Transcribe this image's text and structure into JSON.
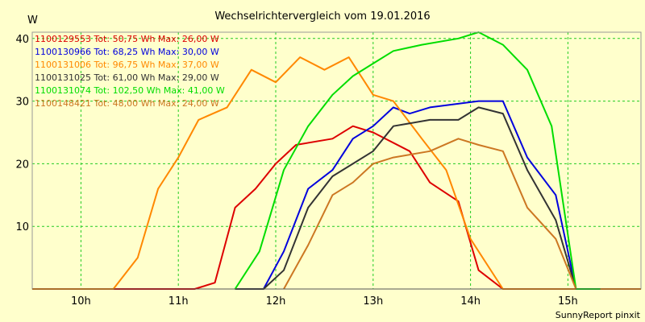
{
  "chart_data": {
    "type": "line",
    "title": "Wechselrichtervergleich vom 19.01.2016",
    "ylabel": "W",
    "xlabel": "",
    "footer": "SunnyReport pinxit",
    "ylim": [
      0,
      41
    ],
    "xlim": [
      9.5,
      15.75
    ],
    "grid": true,
    "legend_position": "top-left",
    "yticks": [
      10,
      20,
      30,
      40
    ],
    "xticks": [
      {
        "value": 10,
        "label": "10h"
      },
      {
        "value": 11,
        "label": "11h"
      },
      {
        "value": 12,
        "label": "12h"
      },
      {
        "value": 13,
        "label": "13h"
      },
      {
        "value": 14,
        "label": "14h"
      },
      {
        "value": 15,
        "label": "15h"
      }
    ],
    "series": [
      {
        "name": "1100129553 Tot: 50,75 Wh Max: 26,00 W",
        "color": "#dd0000",
        "x": [
          9.5,
          10.333,
          11.167,
          11.375,
          11.583,
          11.792,
          12.0,
          12.208,
          12.583,
          12.792,
          13.0,
          13.375,
          13.583,
          13.875,
          14.083,
          14.333,
          15.75
        ],
        "y": [
          0,
          0,
          0,
          1,
          13,
          16,
          20,
          23,
          24,
          26,
          25,
          22,
          17,
          14,
          3,
          0,
          0
        ]
      },
      {
        "name": "1100130966 Tot: 68,25 Wh Max: 30,00 W",
        "color": "#0000dd",
        "x": [
          11.583,
          11.875,
          12.083,
          12.333,
          12.583,
          12.792,
          13.0,
          13.208,
          13.375,
          13.583,
          14.083,
          14.333,
          14.583,
          14.875,
          15.083
        ],
        "y": [
          0,
          0,
          6,
          16,
          19,
          24,
          26,
          29,
          28,
          29,
          30,
          30,
          21,
          15,
          0
        ]
      },
      {
        "name": "1100131006 Tot: 96,75 Wh Max: 37,00 W",
        "color": "#ff8800",
        "x": [
          9.5,
          10.333,
          10.583,
          10.792,
          11.0,
          11.208,
          11.5,
          11.75,
          12.0,
          12.25,
          12.5,
          12.75,
          13.0,
          13.208,
          13.5,
          13.75,
          14.0,
          14.333,
          15.75
        ],
        "y": [
          0,
          0,
          5,
          16,
          21,
          27,
          29,
          35,
          33,
          37,
          35,
          37,
          31,
          30,
          24,
          19,
          8,
          0,
          0
        ]
      },
      {
        "name": "1100131025 Tot: 61,00 Wh Max: 29,00 W",
        "color": "#333333",
        "x": [
          11.583,
          11.875,
          12.083,
          12.333,
          12.583,
          12.792,
          13.0,
          13.208,
          13.583,
          13.875,
          14.083,
          14.333,
          14.583,
          14.875,
          15.083
        ],
        "y": [
          0,
          0,
          3,
          13,
          18,
          20,
          22,
          26,
          27,
          27,
          29,
          28,
          19,
          11,
          0
        ]
      },
      {
        "name": "1100131074 Tot: 102,50 Wh Max: 41,00 W",
        "color": "#00dd00",
        "x": [
          11.583,
          11.833,
          12.083,
          12.333,
          12.583,
          12.792,
          13.0,
          13.208,
          13.5,
          13.875,
          14.083,
          14.333,
          14.583,
          14.833,
          15.083,
          15.333
        ],
        "y": [
          0,
          6,
          19,
          26,
          31,
          34,
          36,
          38,
          39,
          40,
          41,
          39,
          35,
          26,
          0,
          0
        ]
      },
      {
        "name": "1100148421 Tot: 48,00 Wh Max: 24,00 W",
        "color": "#cc7722",
        "x": [
          12.083,
          12.333,
          12.583,
          12.792,
          13.0,
          13.208,
          13.583,
          13.875,
          14.083,
          14.333,
          14.583,
          14.875,
          15.083
        ],
        "y": [
          0,
          7,
          15,
          17,
          20,
          21,
          22,
          24,
          23,
          22,
          13,
          8,
          0
        ]
      }
    ]
  }
}
